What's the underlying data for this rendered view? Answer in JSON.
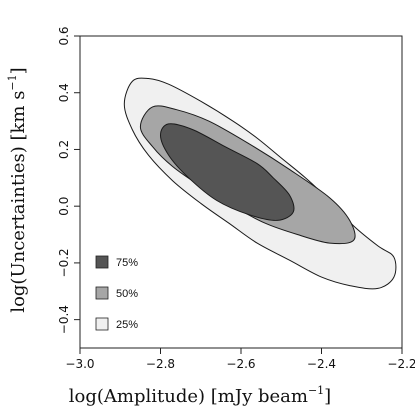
{
  "chart_data": {
    "type": "contour",
    "title": "",
    "xlabel": {
      "main": "log(Amplitude) [mJy beam",
      "sup": "−1",
      "close": "]"
    },
    "ylabel": {
      "main": "log(Uncertainties) [km s",
      "sup": "−1",
      "close": "]"
    },
    "xlim": [
      -3.0,
      -2.2
    ],
    "ylim": [
      -0.5,
      0.6
    ],
    "xticks": [
      -3.0,
      -2.8,
      -2.6,
      -2.4,
      -2.2
    ],
    "xtick_labels": [
      "−3.0",
      "−2.8",
      "−2.6",
      "−2.4",
      "−2.2"
    ],
    "yticks": [
      -0.4,
      -0.2,
      0.0,
      0.2,
      0.4,
      0.6
    ],
    "ytick_labels": [
      "−0.4",
      "−0.2",
      "0.0",
      "0.2",
      "0.4",
      "0.6"
    ],
    "grid": false,
    "legend_position": "bottom-left",
    "series": [
      {
        "name": "25%",
        "color": "#f0f0f0",
        "points": [
          [
            -2.87,
            0.44
          ],
          [
            -2.83,
            0.45
          ],
          [
            -2.78,
            0.43
          ],
          [
            -2.7,
            0.37
          ],
          [
            -2.62,
            0.3
          ],
          [
            -2.56,
            0.24
          ],
          [
            -2.5,
            0.17
          ],
          [
            -2.44,
            0.1
          ],
          [
            -2.38,
            0.02
          ],
          [
            -2.32,
            -0.07
          ],
          [
            -2.26,
            -0.14
          ],
          [
            -2.22,
            -0.18
          ],
          [
            -2.22,
            -0.25
          ],
          [
            -2.26,
            -0.29
          ],
          [
            -2.33,
            -0.28
          ],
          [
            -2.4,
            -0.25
          ],
          [
            -2.48,
            -0.19
          ],
          [
            -2.56,
            -0.13
          ],
          [
            -2.63,
            -0.06
          ],
          [
            -2.7,
            0.01
          ],
          [
            -2.77,
            0.09
          ],
          [
            -2.83,
            0.18
          ],
          [
            -2.87,
            0.27
          ],
          [
            -2.89,
            0.36
          ]
        ]
      },
      {
        "name": "50%",
        "color": "#a6a6a6",
        "points": [
          [
            -2.82,
            0.35
          ],
          [
            -2.76,
            0.34
          ],
          [
            -2.68,
            0.3
          ],
          [
            -2.58,
            0.22
          ],
          [
            -2.48,
            0.13
          ],
          [
            -2.38,
            0.03
          ],
          [
            -2.33,
            -0.05
          ],
          [
            -2.32,
            -0.12
          ],
          [
            -2.38,
            -0.13
          ],
          [
            -2.46,
            -0.1
          ],
          [
            -2.54,
            -0.06
          ],
          [
            -2.62,
            0.0
          ],
          [
            -2.7,
            0.07
          ],
          [
            -2.77,
            0.14
          ],
          [
            -2.82,
            0.21
          ],
          [
            -2.85,
            0.28
          ]
        ]
      },
      {
        "name": "75%",
        "color": "#555555",
        "points": [
          [
            -2.78,
            0.29
          ],
          [
            -2.72,
            0.27
          ],
          [
            -2.64,
            0.21
          ],
          [
            -2.56,
            0.15
          ],
          [
            -2.52,
            0.1
          ],
          [
            -2.48,
            0.04
          ],
          [
            -2.47,
            -0.02
          ],
          [
            -2.51,
            -0.05
          ],
          [
            -2.58,
            -0.03
          ],
          [
            -2.66,
            0.02
          ],
          [
            -2.73,
            0.1
          ],
          [
            -2.78,
            0.18
          ],
          [
            -2.8,
            0.25
          ]
        ]
      }
    ],
    "legend": [
      {
        "label": "75%",
        "color": "#555555"
      },
      {
        "label": "50%",
        "color": "#a6a6a6"
      },
      {
        "label": "25%",
        "color": "#f0f0f0"
      }
    ]
  }
}
